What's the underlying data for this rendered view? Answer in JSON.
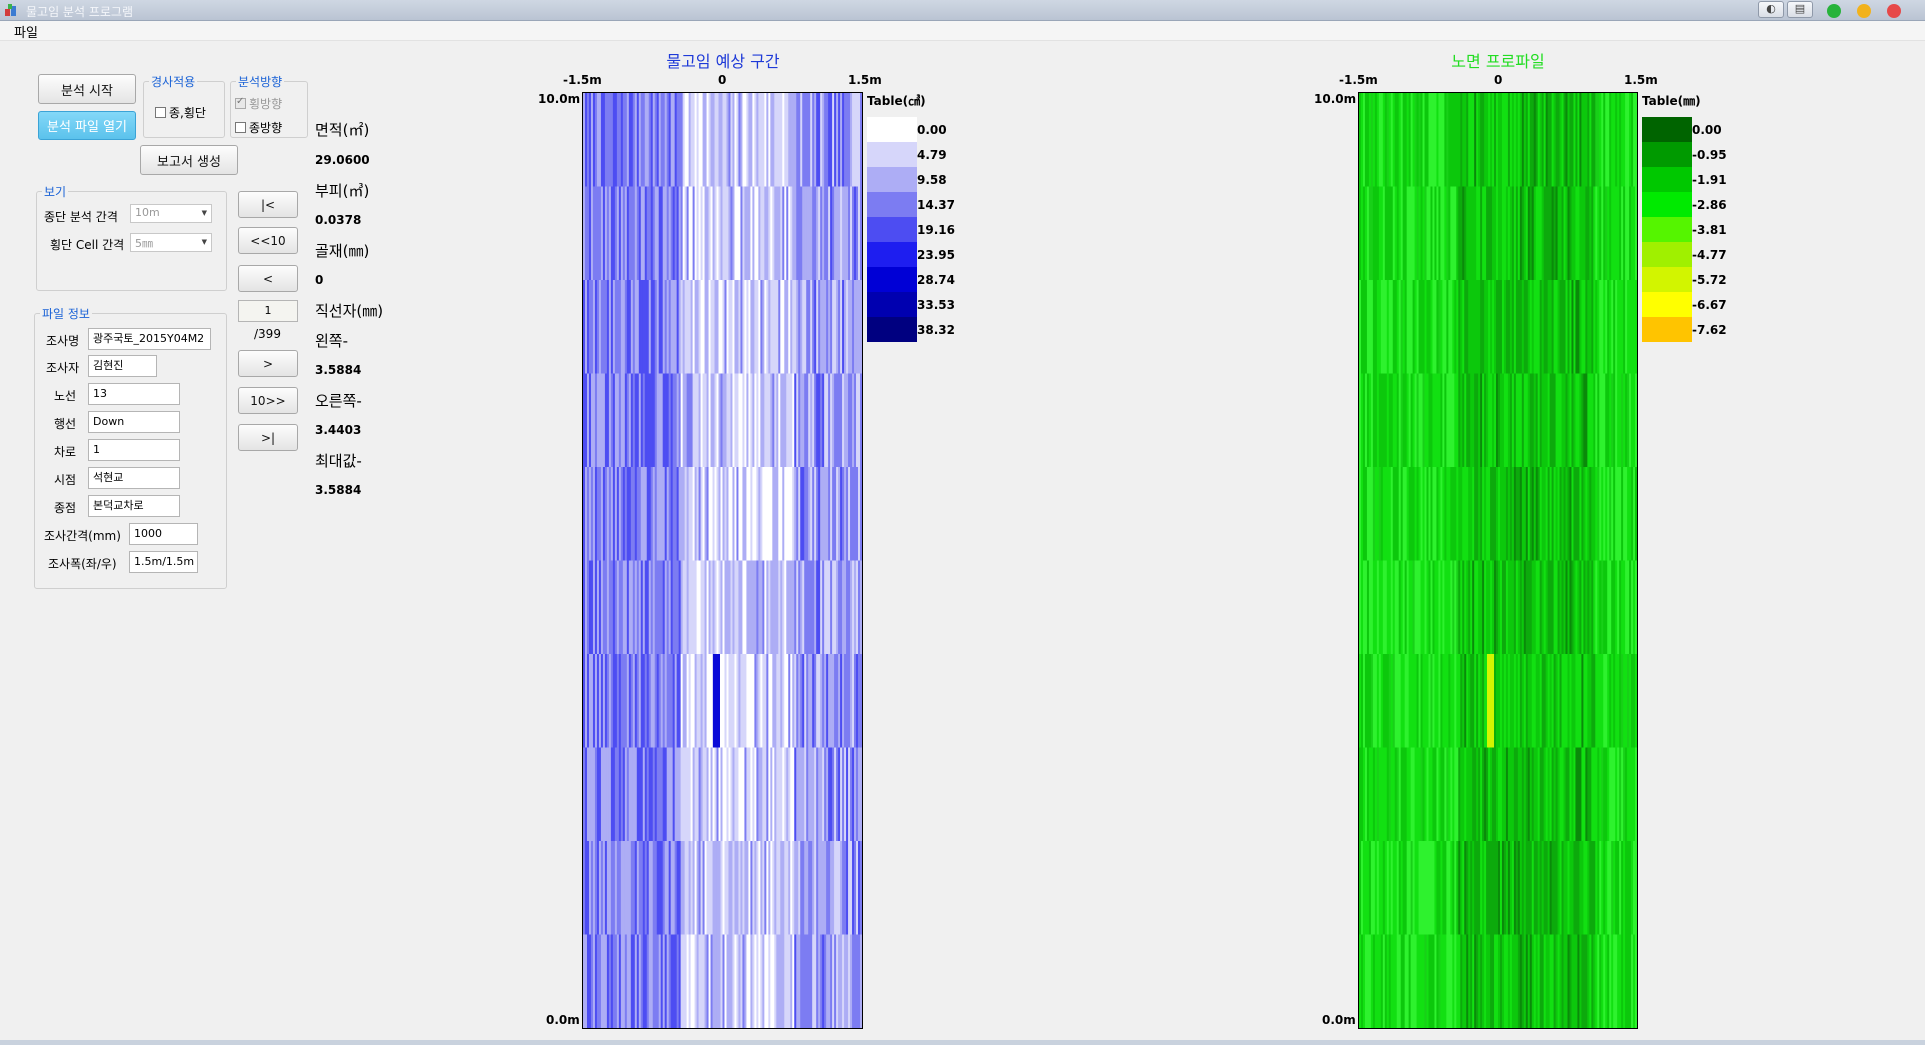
{
  "window": {
    "title": "물고임 분석 프로그램"
  },
  "menu": {
    "file": "파일"
  },
  "actions": {
    "start_analysis": "분석 시작",
    "open_file": "분석 파일 열기",
    "report": "보고서 생성"
  },
  "slope": {
    "title": "경사적용",
    "option_label": "종,횡단",
    "checked": false
  },
  "direction": {
    "title": "분석방향",
    "horizontal": {
      "label": "횡방향",
      "checked": true,
      "disabled": true
    },
    "vertical": {
      "label": "종방향",
      "checked": false
    }
  },
  "view": {
    "title": "보기",
    "long_interval": {
      "label": "종단 분석 간격",
      "value": "10m"
    },
    "cross_cell": {
      "label": "횡단 Cell 간격",
      "value": "5㎜"
    }
  },
  "file_info": {
    "title": "파일 정보",
    "fields": [
      {
        "label": "조사명",
        "value": "광주국토_2015Y04M2"
      },
      {
        "label": "조사자",
        "value": "김현진"
      },
      {
        "label": "노선",
        "value": "13"
      },
      {
        "label": "행선",
        "value": "Down"
      },
      {
        "label": "차로",
        "value": "1"
      },
      {
        "label": "시점",
        "value": "석현교"
      },
      {
        "label": "종점",
        "value": "본덕교차로"
      },
      {
        "label": "조사간격(mm)",
        "value": "1000"
      },
      {
        "label": "조사폭(좌/우)",
        "value": "1.5m/1.5m"
      }
    ]
  },
  "nav": {
    "first": "|<",
    "back10": "<<10",
    "prev": "<",
    "page": "1",
    "total": "/399",
    "next": ">",
    "fwd10": "10>>",
    "last": ">|"
  },
  "stats": {
    "area_label": "면적(㎡)",
    "area_value": "29.0600",
    "volume_label": "부피(㎥)",
    "volume_value": "0.0378",
    "aggregate_label": "골재(㎜)",
    "aggregate_value": "0",
    "straightedge_label": "직선자(㎜)",
    "left_label": "왼쪽-",
    "left_value": "3.5884",
    "right_label": "오른쪽-",
    "right_value": "3.4403",
    "max_label": "최대값-",
    "max_value": "3.5884"
  },
  "ponding_chart": {
    "title": "물고임 예상 구간",
    "x_ticks": [
      "-1.5m",
      "0",
      "1.5m"
    ],
    "y_top": "10.0m",
    "y_bottom": "0.0m",
    "legend_title": "Table(㎤)",
    "legend_values": [
      "0.00",
      "4.79",
      "9.58",
      "14.37",
      "19.16",
      "23.95",
      "28.74",
      "33.53",
      "38.32"
    ],
    "legend_colors": [
      "#ffffff",
      "#d6d6fa",
      "#adadf5",
      "#7c7cf2",
      "#4d4df2",
      "#1e1ef0",
      "#0000d6",
      "#0000b0",
      "#000080"
    ],
    "title_color": "#1e3ad8"
  },
  "profile_chart": {
    "title": "노면 프로파일",
    "x_ticks": [
      "-1.5m",
      "0",
      "1.5m"
    ],
    "y_top": "10.0m",
    "y_bottom": "0.0m",
    "legend_title": "Table(㎜)",
    "legend_values": [
      "0.00",
      "-0.95",
      "-1.91",
      "-2.86",
      "-3.81",
      "-4.77",
      "-5.72",
      "-6.67",
      "-7.62"
    ],
    "legend_colors": [
      "#006400",
      "#009a00",
      "#00c800",
      "#00ea00",
      "#55f500",
      "#a0f000",
      "#d2f500",
      "#ffff00",
      "#ffc400"
    ],
    "title_color": "#22dd22"
  }
}
